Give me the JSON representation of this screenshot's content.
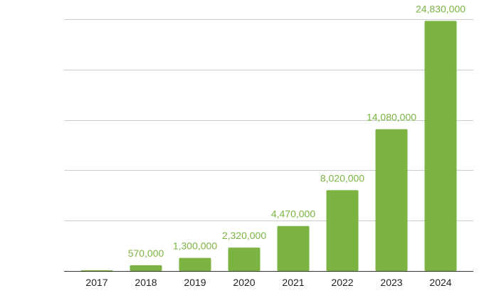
{
  "chart_data": {
    "type": "bar",
    "categories": [
      "2017",
      "2018",
      "2019",
      "2020",
      "2021",
      "2022",
      "2023",
      "2024"
    ],
    "values": [
      0,
      570000,
      1300000,
      2320000,
      4470000,
      8020000,
      14080000,
      24830000
    ],
    "value_labels": [
      "",
      "570,000",
      "1,300,000",
      "2,320,000",
      "4,470,000",
      "8,020,000",
      "14,080,000",
      "24,830,000"
    ],
    "ylim": [
      0,
      25000000
    ],
    "gridlines": [
      0,
      5000000,
      10000000,
      15000000,
      20000000,
      25000000
    ],
    "grid": true,
    "legend": "none",
    "colors": {
      "bar": "#7cb342",
      "label": "#7cb342",
      "grid": "#cccccc",
      "axis": "#333333"
    }
  }
}
